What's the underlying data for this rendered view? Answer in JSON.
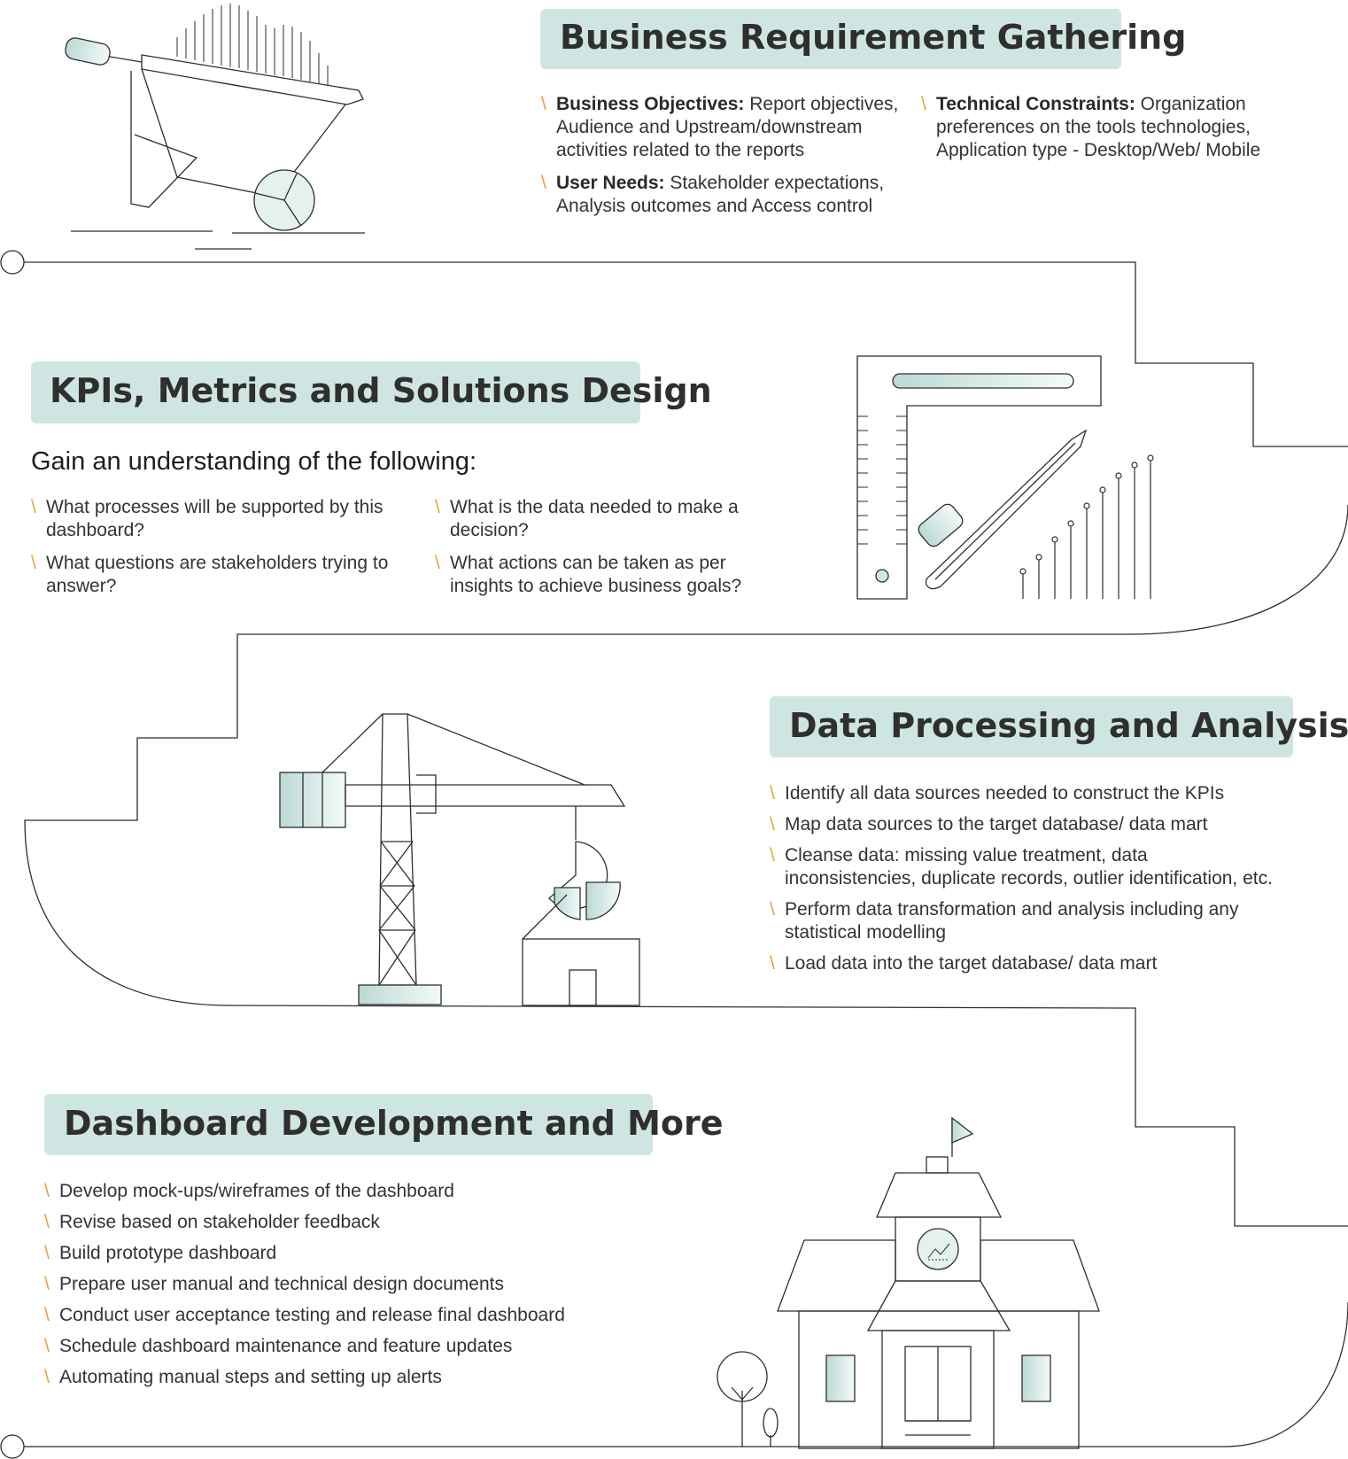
{
  "section1": {
    "title": "Business Requirement Gathering",
    "items": [
      {
        "label": "Business Objectives:",
        "text": " Report objectives, Audience and Upstream/downstream activities related to the reports"
      },
      {
        "label": "User Needs:",
        "text": " Stakeholder expectations, Analysis outcomes and Access control"
      },
      {
        "label": "Technical Constraints:",
        "text": " Organization preferences on the tools technologies, Application type - Desktop/Web/ Mobile"
      }
    ]
  },
  "section2": {
    "title": "KPIs, Metrics and Solutions Design",
    "subtitle": "Gain an understanding of the following:",
    "items": [
      "What processes will be supported by this dashboard?",
      "What questions are stakeholders trying to answer?",
      "What is the data needed to make a decision?",
      "What actions can be taken as per insights to achieve business goals?"
    ]
  },
  "section3": {
    "title": "Data Processing and Analysis",
    "items": [
      "Identify all data sources needed to construct the KPIs",
      "Map data sources to the target database/ data mart",
      "Cleanse data: missing value treatment, data inconsistencies, duplicate records, outlier identification, etc.",
      "Perform data transformation and analysis including any statistical modelling",
      "Load data into the target database/ data mart"
    ]
  },
  "section4": {
    "title": "Dashboard Development and More",
    "items": [
      "Develop mock-ups/wireframes of the dashboard",
      "Revise based on stakeholder feedback",
      "Build prototype dashboard",
      "Prepare user manual and technical design documents",
      "Conduct user acceptance testing and release final dashboard",
      "Schedule dashboard maintenance and feature updates",
      "Automating manual steps and setting up alerts"
    ]
  },
  "colors": {
    "accent": "#e8a13a",
    "title_bg": "#cfe5e2",
    "line": "#2e2e2e",
    "fill": "#cfe5e2"
  }
}
